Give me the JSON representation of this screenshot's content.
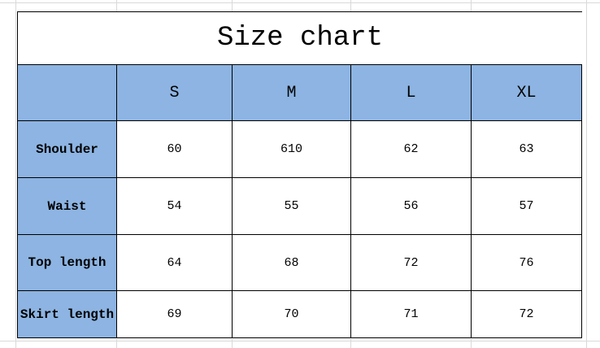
{
  "title": "Size chart",
  "size_chart": {
    "corner_label": "",
    "columns": [
      "S",
      "M",
      "L",
      "XL"
    ],
    "rows": [
      {
        "label": "Shoulder",
        "values": [
          "60",
          "610",
          "62",
          "63"
        ]
      },
      {
        "label": "Waist",
        "values": [
          "54",
          "55",
          "56",
          "57"
        ]
      },
      {
        "label": "Top length",
        "values": [
          "64",
          "68",
          "72",
          "76"
        ]
      },
      {
        "label": "Skirt length",
        "values": [
          "69",
          "70",
          "71",
          "72"
        ]
      }
    ]
  },
  "colors": {
    "header_fill": "#8db4e2",
    "table_border": "#000000",
    "gridline": "#d9d9d9",
    "cell_background": "#ffffff",
    "text": "#000000"
  }
}
